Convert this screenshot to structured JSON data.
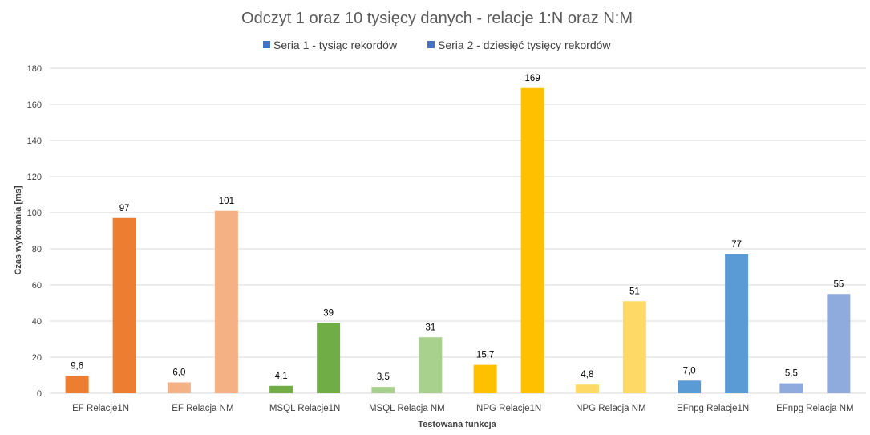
{
  "chart_data": {
    "type": "bar",
    "title": "Odczyt 1 oraz 10 tysięcy danych - relacje 1:N oraz N:M",
    "xlabel": "Testowana funkcja",
    "ylabel": "Czas wykonania [ms]",
    "ylim": [
      0,
      180
    ],
    "yticks": [
      "0",
      "20",
      "40",
      "60",
      "80",
      "100",
      "120",
      "140",
      "160",
      "180"
    ],
    "grid": true,
    "legend_position": "top",
    "legend": [
      {
        "name": "Seria 1 - tysiąc rekordów",
        "color": "#4472c4"
      },
      {
        "name": "Seria 2 - dziesięć tysięcy rekordów",
        "color": "#4472c4"
      }
    ],
    "categories": [
      "EF Relacje1N",
      "EF Relacja NM",
      "MSQL Relacje1N",
      "MSQL Relacja NM",
      "NPG Relacje1N",
      "NPG Relacja NM",
      "EFnpg Relacje1N",
      "EFnpg Relacja NM"
    ],
    "category_colors": [
      "#ed7d31",
      "#f4b183",
      "#70ad47",
      "#a9d18e",
      "#ffc000",
      "#ffd966",
      "#5b9bd5",
      "#8faadc"
    ],
    "series": [
      {
        "name": "Seria 1 - tysiąc rekordów",
        "values": [
          9.6,
          6.0,
          4.1,
          3.5,
          15.7,
          4.8,
          7.0,
          5.5
        ],
        "labels": [
          "9,6",
          "6,0",
          "4,1",
          "3,5",
          "15,7",
          "4,8",
          "7,0",
          "5,5"
        ]
      },
      {
        "name": "Seria 2 - dziesięć tysięcy rekordów",
        "values": [
          97,
          101,
          39,
          31,
          169,
          51,
          77,
          55
        ],
        "labels": [
          "97",
          "101",
          "39",
          "31",
          "169",
          "51",
          "77",
          "55"
        ]
      }
    ]
  }
}
